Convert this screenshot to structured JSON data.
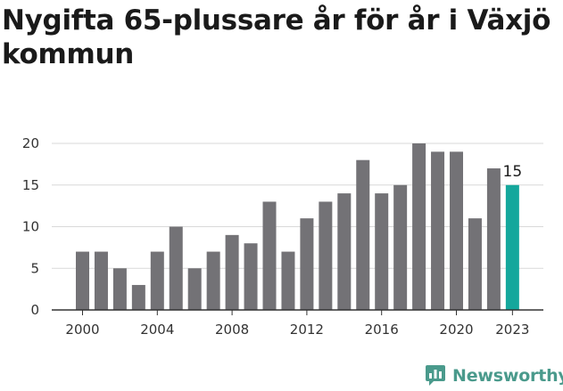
{
  "title": "Nygifta 65-plussare år för år i Växjö kommun",
  "brand": {
    "name": "Newsworthy",
    "icon": "newsworthy-logo-icon"
  },
  "colors": {
    "bar": "#737276",
    "highlight": "#14a79c",
    "grid": "#d9d9d9",
    "axis": "#333333",
    "brand": "#4a9a8c"
  },
  "chart_data": {
    "type": "bar",
    "title": "Nygifta 65-plussare år för år i Växjö kommun",
    "xlabel": "",
    "ylabel": "",
    "categories": [
      "2000",
      "2001",
      "2002",
      "2003",
      "2004",
      "2005",
      "2006",
      "2007",
      "2008",
      "2009",
      "2010",
      "2011",
      "2012",
      "2013",
      "2014",
      "2015",
      "2016",
      "2017",
      "2018",
      "2019",
      "2020",
      "2021",
      "2022",
      "2023"
    ],
    "values": [
      7,
      7,
      5,
      3,
      7,
      10,
      5,
      7,
      9,
      8,
      13,
      7,
      11,
      13,
      14,
      18,
      14,
      15,
      20,
      19,
      19,
      11,
      17,
      15
    ],
    "highlight_index": 23,
    "data_labels": [
      {
        "category": "2023",
        "text": "15"
      }
    ],
    "x_tick_labels": [
      "2000",
      "2004",
      "2008",
      "2012",
      "2016",
      "2020",
      "2023"
    ],
    "y_ticks": [
      0,
      5,
      10,
      15,
      20
    ],
    "ylim": [
      0,
      20
    ],
    "grid": "horizontal",
    "legend": "none"
  }
}
